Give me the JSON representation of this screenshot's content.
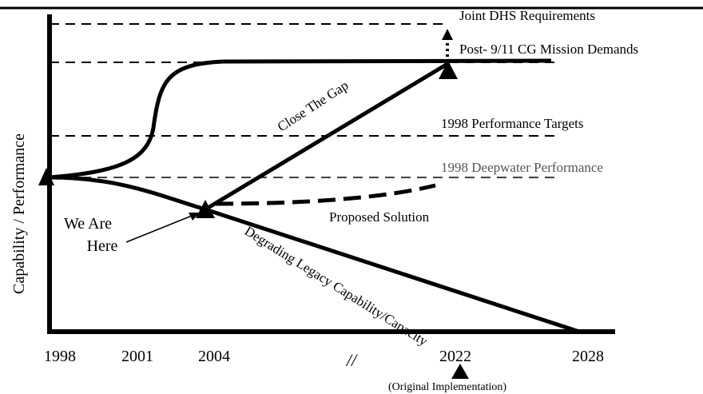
{
  "y_axis_label": "Capability / Performance",
  "lines": {
    "joint": "Joint DHS Requirements",
    "post911": "Post- 9/11 CG Mission Demands",
    "targets": "1998 Performance Targets",
    "deepwater": "1998 Deepwater Performance"
  },
  "curves": {
    "gap": "Close The Gap",
    "proposed": "Proposed Solution",
    "degrading": "Degrading Legacy Capability/Capacity"
  },
  "here": [
    "We Are",
    "Here"
  ],
  "x_labels": [
    "1998",
    "2001",
    "2004",
    "//",
    "2022",
    "2028"
  ],
  "implementation_note": "(Original Implementation)"
}
